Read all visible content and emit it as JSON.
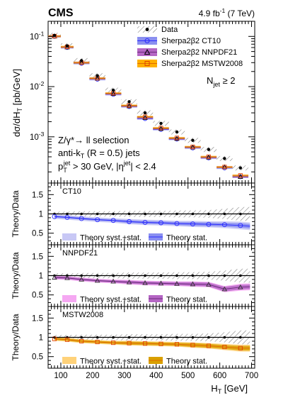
{
  "header": {
    "experiment": "CMS",
    "luminosity_label": "4.9 fb",
    "luminosity_exp": "-1",
    "energy_label": "(7 TeV)"
  },
  "annotations": {
    "njet_base": "N",
    "njet_sub": "jet",
    "njet_rest": " ≥ 2",
    "selection_line1": "Z/γ*→ ll selection",
    "selection_line2_a": "anti-k",
    "selection_line2_sub": "T",
    "selection_line2_b": " (R = 0.5) jets",
    "selection_line3_a": "p",
    "selection_line3_sub": "T",
    "selection_line3_sup": "jet",
    "selection_line3_b": " > 30 GeV, |η",
    "selection_line3_sup2": "jet",
    "selection_line3_c": "| < 2.4"
  },
  "axes": {
    "xlabel_base": "H",
    "xlabel_sub": "T",
    "xlabel_unit": " [GeV]",
    "ylabel_top": "dσ/dH",
    "ylabel_top_sub": "T",
    "ylabel_top_unit": " [pb/GeV]",
    "ylabel_ratio": "Theory/Data",
    "ratio_yticks": [
      "0.5",
      "1",
      "1.5"
    ],
    "main_yticks": [
      "10",
      "10",
      "10"
    ],
    "main_ytick_exps": [
      "-1",
      "-2",
      "-3"
    ]
  },
  "legend_main": [
    "Data",
    "Sherpa2β2 CT10",
    "Sherpa2β2 NNPDF21",
    "Sherpa2β2 MSTW2008"
  ],
  "ratio_panels": [
    {
      "name": "CT10",
      "legend_syst": "Theory syst.+stat.",
      "legend_stat": "Theory stat.",
      "colors": {
        "band_syst": "#c8c8f5",
        "band_stat": "#8a8ff0",
        "line": "#2b2bff"
      },
      "marker": "circle"
    },
    {
      "name": "NNPDF21",
      "legend_syst": "Theory syst.+stat.",
      "legend_stat": "Theory stat.",
      "colors": {
        "band_syst": "#f5a8f2",
        "band_stat": "#b566c4",
        "line": "#6b2a7a"
      },
      "marker": "triangle"
    },
    {
      "name": "MSTW2008",
      "legend_syst": "Theory syst.+stat.",
      "legend_stat": "Theory stat.",
      "colors": {
        "band_syst": "#ffd27a",
        "band_stat": "#d9a000",
        "line": "#e06a00"
      },
      "marker": "square"
    }
  ],
  "chart_data": [
    {
      "type": "scatter",
      "log_y": true,
      "xlim": [
        60,
        710
      ],
      "ylim": [
        0.00012,
        0.2
      ],
      "xticks": [
        100,
        200,
        300,
        400,
        500,
        600,
        700
      ],
      "bins": [
        [
          60,
          100
        ],
        [
          100,
          140
        ],
        [
          140,
          190
        ],
        [
          190,
          240
        ],
        [
          240,
          290
        ],
        [
          290,
          340
        ],
        [
          340,
          390
        ],
        [
          390,
          440
        ],
        [
          440,
          490
        ],
        [
          490,
          540
        ],
        [
          540,
          590
        ],
        [
          590,
          640
        ],
        [
          640,
          690
        ]
      ],
      "series": [
        {
          "name": "Data",
          "values": [
            0.105,
            0.065,
            0.033,
            0.0165,
            0.0085,
            0.005,
            0.003,
            0.00185,
            0.00125,
            0.00085,
            0.00056,
            0.00037,
            0.00024
          ],
          "color": "#000000"
        },
        {
          "name": "Sherpa2β2 CT10",
          "values": [
            0.1,
            0.06,
            0.029,
            0.014,
            0.007,
            0.004,
            0.0023,
            0.0014,
            0.0009,
            0.0006,
            0.00038,
            0.00024,
            0.00016
          ],
          "color": "#2b2bff"
        },
        {
          "name": "Sherpa2β2 NNPDF21",
          "values": [
            0.1,
            0.061,
            0.03,
            0.0145,
            0.0072,
            0.0041,
            0.0024,
            0.00145,
            0.00092,
            0.00062,
            0.00039,
            0.00025,
            0.00016
          ],
          "color": "#6b2a7a"
        },
        {
          "name": "Sherpa2β2 MSTW2008",
          "values": [
            0.101,
            0.062,
            0.03,
            0.0147,
            0.0074,
            0.0042,
            0.0025,
            0.0015,
            0.00095,
            0.00063,
            0.0004,
            0.00025,
            0.00017
          ],
          "color": "#e06a00"
        }
      ]
    },
    {
      "type": "line",
      "panel": "CT10",
      "xlim": [
        60,
        710
      ],
      "ylim": [
        0.2,
        1.8
      ],
      "x": [
        80,
        120,
        165,
        215,
        265,
        315,
        365,
        415,
        465,
        515,
        565,
        615,
        665,
        695
      ],
      "values": [
        0.93,
        0.91,
        0.88,
        0.85,
        0.83,
        0.8,
        0.78,
        0.77,
        0.75,
        0.74,
        0.73,
        0.72,
        0.7,
        0.68
      ],
      "data_unc": [
        0.06,
        0.06,
        0.07,
        0.07,
        0.07,
        0.08,
        0.08,
        0.08,
        0.09,
        0.09,
        0.1,
        0.13,
        0.18,
        0.18
      ],
      "theory_stat": [
        0.03,
        0.03,
        0.03,
        0.03,
        0.03,
        0.04,
        0.04,
        0.04,
        0.04,
        0.05,
        0.05,
        0.05,
        0.06,
        0.06
      ],
      "theory_syst": [
        0.06,
        0.06,
        0.06,
        0.06,
        0.06,
        0.07,
        0.07,
        0.07,
        0.07,
        0.08,
        0.08,
        0.09,
        0.1,
        0.1
      ]
    },
    {
      "type": "line",
      "panel": "NNPDF21",
      "xlim": [
        60,
        710
      ],
      "ylim": [
        0.2,
        1.8
      ],
      "x": [
        80,
        120,
        165,
        215,
        265,
        315,
        365,
        415,
        465,
        515,
        565,
        615,
        665,
        695
      ],
      "values": [
        0.95,
        0.94,
        0.9,
        0.87,
        0.85,
        0.83,
        0.81,
        0.8,
        0.79,
        0.78,
        0.77,
        0.65,
        0.7,
        0.71
      ],
      "data_unc": [
        0.06,
        0.06,
        0.07,
        0.07,
        0.07,
        0.08,
        0.08,
        0.08,
        0.09,
        0.09,
        0.1,
        0.13,
        0.18,
        0.18
      ],
      "theory_stat": [
        0.03,
        0.03,
        0.03,
        0.03,
        0.03,
        0.04,
        0.04,
        0.04,
        0.04,
        0.05,
        0.05,
        0.06,
        0.06,
        0.06
      ],
      "theory_syst": [
        0.05,
        0.05,
        0.05,
        0.05,
        0.05,
        0.06,
        0.06,
        0.06,
        0.06,
        0.07,
        0.07,
        0.08,
        0.09,
        0.09
      ]
    },
    {
      "type": "line",
      "panel": "MSTW2008",
      "xlim": [
        60,
        710
      ],
      "ylim": [
        0.2,
        1.8
      ],
      "x": [
        80,
        120,
        165,
        215,
        265,
        315,
        365,
        415,
        465,
        515,
        565,
        615,
        665,
        695
      ],
      "values": [
        0.96,
        0.94,
        0.9,
        0.88,
        0.86,
        0.85,
        0.84,
        0.83,
        0.82,
        0.8,
        0.78,
        0.75,
        0.72,
        0.72
      ],
      "data_unc": [
        0.06,
        0.06,
        0.07,
        0.07,
        0.07,
        0.08,
        0.08,
        0.08,
        0.09,
        0.09,
        0.1,
        0.13,
        0.18,
        0.18
      ],
      "theory_stat": [
        0.03,
        0.03,
        0.03,
        0.03,
        0.03,
        0.04,
        0.04,
        0.04,
        0.04,
        0.05,
        0.05,
        0.05,
        0.06,
        0.06
      ],
      "theory_syst": [
        0.05,
        0.05,
        0.05,
        0.05,
        0.05,
        0.06,
        0.06,
        0.06,
        0.06,
        0.07,
        0.07,
        0.08,
        0.09,
        0.09
      ]
    }
  ]
}
